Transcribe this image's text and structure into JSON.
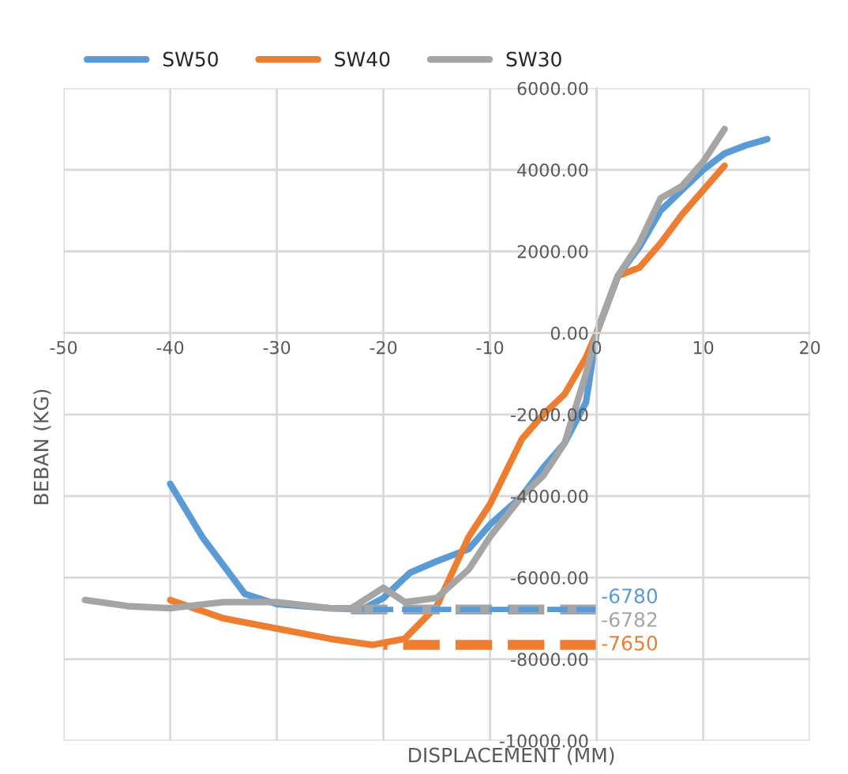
{
  "chart_data": {
    "type": "line",
    "xlabel": "DISPLACEMENT (MM)",
    "ylabel": "BEBAN (KG)",
    "xlim": [
      -50,
      20
    ],
    "xticks": [
      -50,
      -40,
      -30,
      -20,
      -10,
      0,
      10,
      20
    ],
    "ylim": [
      -10000,
      6000
    ],
    "yticks": [
      {
        "value": -10000,
        "label": "-10000.00"
      },
      {
        "value": -8000,
        "label": "-8000.00"
      },
      {
        "value": -6000,
        "label": "-6000.00"
      },
      {
        "value": -4000,
        "label": "-4000.00"
      },
      {
        "value": -2000,
        "label": "-2000.00"
      },
      {
        "value": 0,
        "label": "0.00"
      },
      {
        "value": 2000,
        "label": "2000.00"
      },
      {
        "value": 4000,
        "label": "4000.00"
      },
      {
        "value": 6000,
        "label": "6000.00"
      }
    ],
    "grid": true,
    "legend": "top",
    "marker": "none",
    "series": [
      {
        "name": "SW50",
        "color": "#5b9bd5",
        "x": [
          -40,
          -37,
          -33,
          -30,
          -25,
          -22,
          -20,
          -17.5,
          -15,
          -12,
          -10,
          -7,
          -5,
          -3,
          -1,
          0,
          2,
          4,
          6,
          8,
          10,
          12,
          14,
          16
        ],
        "values": [
          -3700,
          -5000,
          -6400,
          -6650,
          -6750,
          -6780,
          -6500,
          -5880,
          -5600,
          -5300,
          -4700,
          -4000,
          -3300,
          -2700,
          -1700,
          0,
          1400,
          2100,
          3000,
          3500,
          4000,
          4400,
          4600,
          4750
        ]
      },
      {
        "name": "SW40",
        "color": "#ed7d31",
        "x": [
          -40,
          -35,
          -30,
          -25,
          -21,
          -18,
          -15,
          -12,
          -10,
          -7,
          -5,
          -3,
          -1,
          0,
          2,
          3,
          4,
          6,
          8,
          10,
          12
        ],
        "values": [
          -6550,
          -7000,
          -7250,
          -7500,
          -7650,
          -7500,
          -6700,
          -5000,
          -4200,
          -2600,
          -2000,
          -1500,
          -600,
          0,
          1400,
          1500,
          1600,
          2200,
          2900,
          3500,
          4100
        ]
      },
      {
        "name": "SW30",
        "color": "#a5a5a5",
        "x": [
          -48,
          -44,
          -40,
          -35,
          -30,
          -25,
          -23,
          -20,
          -18,
          -15,
          -12,
          -10,
          -7,
          -5,
          -3,
          -1,
          0,
          2,
          4,
          6,
          8,
          10,
          12
        ],
        "values": [
          -6550,
          -6700,
          -6750,
          -6600,
          -6600,
          -6750,
          -6750,
          -6250,
          -6600,
          -6500,
          -5800,
          -5000,
          -4000,
          -3500,
          -2700,
          -1000,
          0,
          1400,
          2200,
          3300,
          3600,
          4200,
          5000
        ]
      },
      {
        "name": "-6780",
        "color": "#5b9bd5",
        "line_style": "dashed",
        "x": [
          -22,
          0
        ],
        "values": [
          -6780,
          -6780
        ]
      },
      {
        "name": "-6782",
        "color": "#a5a5a5",
        "line_style": "dashed",
        "x": [
          -24,
          0
        ],
        "values": [
          -6782,
          -6782
        ]
      },
      {
        "name": "-7650",
        "color": "#ed7d31",
        "line_style": "dashed",
        "x": [
          -20,
          0
        ],
        "values": [
          -7650,
          -7650
        ]
      }
    ]
  }
}
